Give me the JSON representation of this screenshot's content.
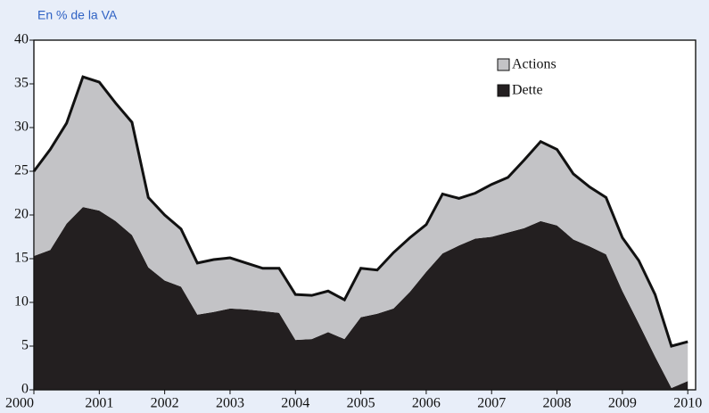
{
  "chart_data": {
    "type": "stacked-area",
    "title": "En % de la VA",
    "x": [
      2000,
      2000.25,
      2000.5,
      2000.75,
      2001,
      2001.25,
      2001.5,
      2001.75,
      2002,
      2002.25,
      2002.5,
      2002.75,
      2003,
      2003.25,
      2003.5,
      2003.75,
      2004,
      2004.25,
      2004.5,
      2004.75,
      2005,
      2005.25,
      2005.5,
      2005.75,
      2006,
      2006.25,
      2006.5,
      2006.75,
      2007,
      2007.25,
      2007.5,
      2007.75,
      2008,
      2008.25,
      2008.5,
      2008.75,
      2009,
      2009.25,
      2009.5,
      2009.75,
      2010
    ],
    "series": [
      {
        "name": "Actions",
        "color": "#c3c3c6",
        "values": [
          9.7,
          11.5,
          11.5,
          14.9,
          14.7,
          13.5,
          12.9,
          8,
          7.5,
          6.6,
          5.9,
          6,
          5.8,
          5.3,
          4.9,
          5.1,
          5.2,
          5,
          4.7,
          4.5,
          5.6,
          5,
          6.4,
          6.2,
          5.4,
          6.8,
          5.4,
          5.2,
          6,
          6.3,
          7.8,
          9.1,
          8.7,
          7.5,
          6.8,
          6.5,
          6.1,
          7.2,
          7.1,
          4.8,
          4.5
        ]
      },
      {
        "name": "Dette",
        "color": "#231f20",
        "values": [
          15.3,
          16,
          19,
          20.9,
          20.5,
          19.3,
          17.7,
          14,
          12.5,
          11.8,
          8.6,
          8.9,
          9.3,
          9.2,
          9,
          8.8,
          5.7,
          5.8,
          6.6,
          5.8,
          8.3,
          8.7,
          9.3,
          11.2,
          13.5,
          15.6,
          16.5,
          17.3,
          17.5,
          18,
          18.5,
          19.3,
          18.8,
          17.2,
          16.4,
          15.5,
          11.3,
          7.6,
          3.8,
          0.2,
          1
        ]
      }
    ],
    "xlim": [
      2000,
      2010.12
    ],
    "xticks": [
      2000,
      2001,
      2002,
      2003,
      2004,
      2005,
      2006,
      2007,
      2008,
      2009,
      2010
    ],
    "ylim": [
      0,
      40
    ],
    "yticks": [
      0,
      5,
      10,
      15,
      20,
      25,
      30,
      35,
      40
    ],
    "legend": "upper-right"
  }
}
